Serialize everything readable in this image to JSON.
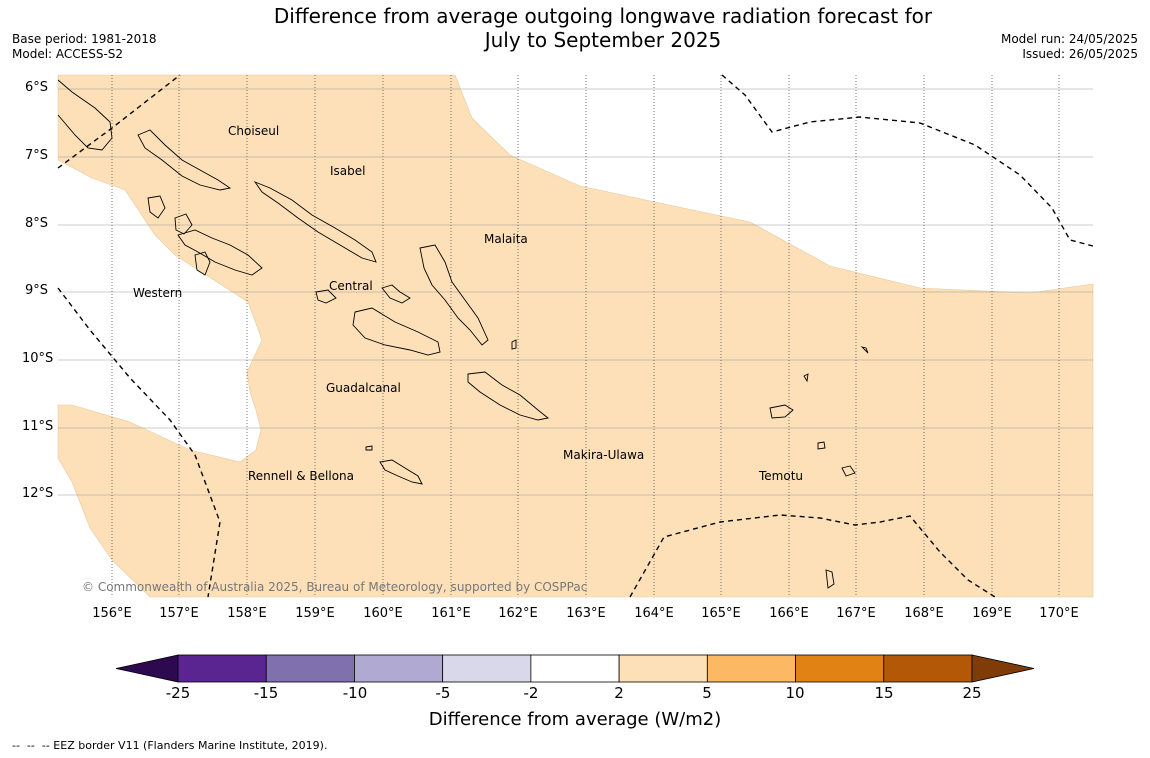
{
  "title_line1": "Difference from average outgoing longwave radiation forecast for",
  "title_line2": "July to September 2025",
  "meta": {
    "base_period": "Base period: 1981-2018",
    "model": "Model: ACCESS-S2",
    "model_run": "Model run: 24/05/2025",
    "issued": "Issued: 26/05/2025"
  },
  "latitude_labels": [
    "6°S",
    "7°S",
    "8°S",
    "9°S",
    "10°S",
    "11°S",
    "12°S"
  ],
  "longitude_labels": [
    "156°E",
    "157°E",
    "158°E",
    "159°E",
    "160°E",
    "161°E",
    "162°E",
    "163°E",
    "164°E",
    "165°E",
    "166°E",
    "167°E",
    "168°E",
    "169°E",
    "170°E"
  ],
  "provinces": [
    "Choiseul",
    "Isabel",
    "Malaita",
    "Western",
    "Central",
    "Guadalcanal",
    "Makira-Ulawa",
    "Rennell & Bellona",
    "Temotu"
  ],
  "copyright": "© Commonwealth of Australia 2025, Bureau of Meteorology, supported by COSPPac",
  "colorbar": {
    "labels": [
      "-25",
      "-15",
      "-10",
      "-5",
      "-2",
      "2",
      "5",
      "10",
      "15",
      "25"
    ],
    "colors": [
      "#2d0a4f",
      "#5a2590",
      "#8070ad",
      "#b0a9d2",
      "#d8d8ea",
      "#ffffff",
      "#fde0b8",
      "#fdb863",
      "#e08214",
      "#b35806",
      "#7f3b08"
    ],
    "title": "Difference from average (W/m2)"
  },
  "filled_category": "2 to 5",
  "fill_color": "#fde0b8",
  "eez_note": "--  --  -- EEZ border V11 (Flanders Marine Institute, 2019)."
}
